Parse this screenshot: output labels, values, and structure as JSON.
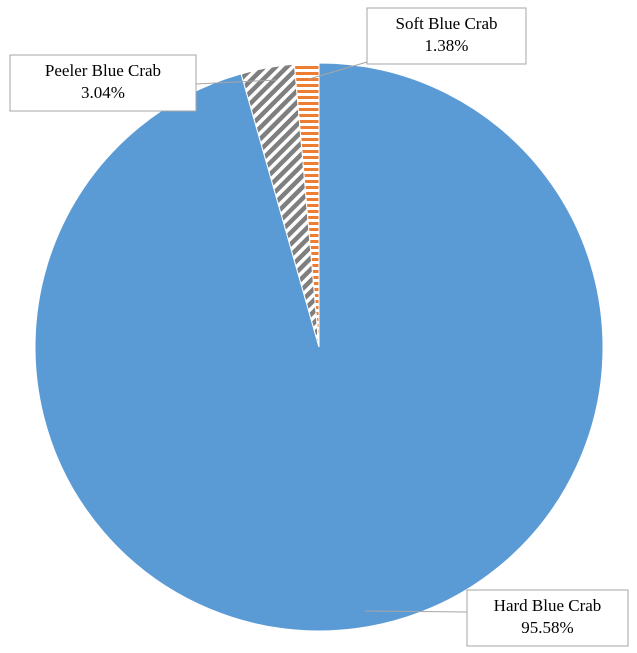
{
  "chart_data": {
    "type": "pie",
    "categories": [
      "Hard Blue Crab",
      "Peeler Blue Crab",
      "Soft Blue Crab"
    ],
    "values": [
      95.58,
      3.04,
      1.38
    ],
    "value_labels": [
      "95.58%",
      "3.04%",
      "1.38%"
    ],
    "colors": [
      "#5b9bd5",
      "#7f7f7f",
      "#ed7d31"
    ],
    "patterns": [
      "solid",
      "diagonal",
      "horizontal"
    ]
  }
}
